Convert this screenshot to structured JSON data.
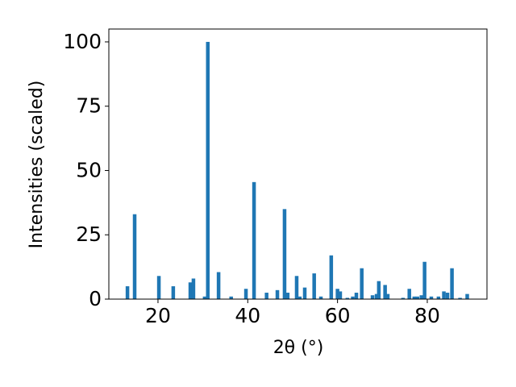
{
  "chart_data": {
    "type": "bar",
    "xlabel": "2θ (°)",
    "ylabel": "Intensities (scaled)",
    "x": [
      13.2,
      14.8,
      20.2,
      23.4,
      27.2,
      27.9,
      30.4,
      31.1,
      33.5,
      36.3,
      39.6,
      41.4,
      44.2,
      46.6,
      48.2,
      48.9,
      50.9,
      51.6,
      52.7,
      54.8,
      56.3,
      58.6,
      60.0,
      60.6,
      62.2,
      63.4,
      64.2,
      65.4,
      67.8,
      68.7,
      69.2,
      70.6,
      71.2,
      74.6,
      76.0,
      77.1,
      77.8,
      78.7,
      79.4,
      80.9,
      82.5,
      83.7,
      84.5,
      85.5,
      87.3,
      88.9
    ],
    "values": [
      5,
      33,
      9,
      5,
      6.5,
      8,
      1,
      100,
      10.5,
      1,
      4,
      45.5,
      2.5,
      3.5,
      35,
      2.5,
      9,
      1,
      4.5,
      10,
      1,
      17,
      4,
      3,
      0.5,
      1,
      2.5,
      12,
      1.5,
      2,
      7,
      5.5,
      2,
      0.5,
      4,
      1,
      1,
      1.5,
      14.5,
      1,
      1,
      3,
      2.5,
      12,
      0.5,
      2
    ],
    "color": "#1f77b4",
    "xlim": [
      9.05,
      93.3
    ],
    "xticks": [
      20,
      40,
      60,
      80
    ],
    "ylim": [
      0,
      105
    ],
    "yticks": [
      0,
      25,
      50,
      75,
      100
    ]
  }
}
